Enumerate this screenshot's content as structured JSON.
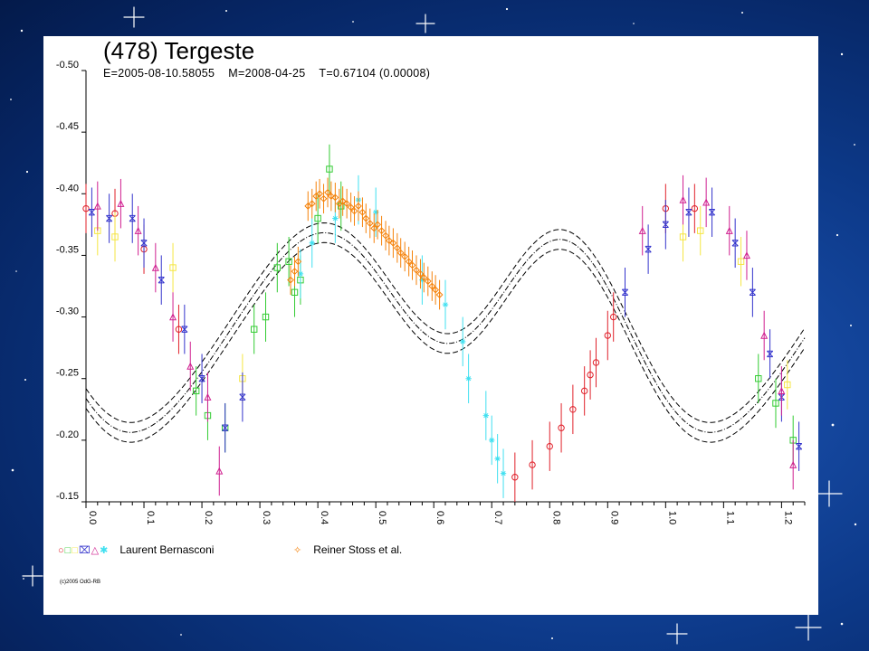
{
  "chart_data": {
    "type": "scatter",
    "title": "(478) Tergeste",
    "subtitle": "E=2005-08-10.58055    M=2008-04-25    T=0.67104 (0.00008)",
    "xlabel": "",
    "ylabel": "",
    "xlim": [
      0.0,
      1.24
    ],
    "ylim": [
      -0.5,
      -0.15
    ],
    "y_inverted": true,
    "x_ticks": [
      "0.0",
      "0.1",
      "0.2",
      "0.3",
      "0.4",
      "0.5",
      "0.6",
      "0.7",
      "0.8",
      "0.9",
      "1.0",
      "1.1",
      "1.2"
    ],
    "y_ticks": [
      "-0.50",
      "-0.45",
      "-0.40",
      "-0.35",
      "-0.30",
      "-0.25",
      "-0.20",
      "-0.15"
    ],
    "grid": false,
    "legend_position": "bottom",
    "fit_curves": [
      "dashed",
      "dash-dot",
      "dashed"
    ],
    "series": [
      {
        "name": "Laurent Bernasconi",
        "color": "#e0202a",
        "marker": "circle",
        "points": [
          [
            0.0,
            -0.388
          ],
          [
            0.05,
            -0.384
          ],
          [
            0.1,
            -0.355
          ],
          [
            0.16,
            -0.29
          ],
          [
            0.74,
            -0.17
          ],
          [
            0.77,
            -0.18
          ],
          [
            0.8,
            -0.195
          ],
          [
            0.82,
            -0.21
          ],
          [
            0.84,
            -0.225
          ],
          [
            0.86,
            -0.24
          ],
          [
            0.87,
            -0.253
          ],
          [
            0.88,
            -0.263
          ],
          [
            0.9,
            -0.285
          ],
          [
            0.91,
            -0.3
          ],
          [
            1.0,
            -0.388
          ],
          [
            1.05,
            -0.388
          ]
        ]
      },
      {
        "name": "Laurent Bernasconi",
        "color": "#33cc33",
        "marker": "square",
        "points": [
          [
            0.19,
            -0.24
          ],
          [
            0.21,
            -0.22
          ],
          [
            0.24,
            -0.21
          ],
          [
            0.29,
            -0.29
          ],
          [
            0.31,
            -0.3
          ],
          [
            0.33,
            -0.34
          ],
          [
            0.35,
            -0.345
          ],
          [
            0.36,
            -0.32
          ],
          [
            0.37,
            -0.33
          ],
          [
            0.4,
            -0.38
          ],
          [
            0.42,
            -0.42
          ],
          [
            0.44,
            -0.39
          ],
          [
            1.16,
            -0.25
          ],
          [
            1.19,
            -0.23
          ],
          [
            1.22,
            -0.2
          ]
        ]
      },
      {
        "name": "Laurent Bernasconi",
        "color": "#f5e642",
        "marker": "square",
        "points": [
          [
            0.02,
            -0.37
          ],
          [
            0.05,
            -0.365
          ],
          [
            0.15,
            -0.34
          ],
          [
            0.27,
            -0.25
          ],
          [
            1.03,
            -0.365
          ],
          [
            1.06,
            -0.37
          ],
          [
            1.13,
            -0.345
          ],
          [
            1.21,
            -0.245
          ]
        ]
      },
      {
        "name": "Laurent Bernasconi",
        "color": "#3333cc",
        "marker": "x-box",
        "points": [
          [
            0.01,
            -0.385
          ],
          [
            0.04,
            -0.38
          ],
          [
            0.08,
            -0.38
          ],
          [
            0.1,
            -0.36
          ],
          [
            0.13,
            -0.33
          ],
          [
            0.17,
            -0.29
          ],
          [
            0.2,
            -0.25
          ],
          [
            0.24,
            -0.21
          ],
          [
            0.27,
            -0.235
          ],
          [
            0.93,
            -0.32
          ],
          [
            0.97,
            -0.355
          ],
          [
            1.0,
            -0.375
          ],
          [
            1.04,
            -0.385
          ],
          [
            1.08,
            -0.385
          ],
          [
            1.12,
            -0.36
          ],
          [
            1.15,
            -0.32
          ],
          [
            1.18,
            -0.27
          ],
          [
            1.2,
            -0.235
          ],
          [
            1.23,
            -0.195
          ]
        ]
      },
      {
        "name": "Laurent Bernasconi",
        "color": "#d02090",
        "marker": "triangle",
        "points": [
          [
            0.02,
            -0.39
          ],
          [
            0.06,
            -0.392
          ],
          [
            0.09,
            -0.37
          ],
          [
            0.12,
            -0.34
          ],
          [
            0.15,
            -0.3
          ],
          [
            0.18,
            -0.26
          ],
          [
            0.21,
            -0.235
          ],
          [
            0.23,
            -0.175
          ],
          [
            0.96,
            -0.37
          ],
          [
            1.03,
            -0.395
          ],
          [
            1.07,
            -0.393
          ],
          [
            1.11,
            -0.37
          ],
          [
            1.14,
            -0.35
          ],
          [
            1.17,
            -0.285
          ],
          [
            1.2,
            -0.24
          ],
          [
            1.22,
            -0.18
          ]
        ]
      },
      {
        "name": "Laurent Bernasconi",
        "color": "#40e0f0",
        "marker": "star",
        "points": [
          [
            0.37,
            -0.335
          ],
          [
            0.39,
            -0.36
          ],
          [
            0.43,
            -0.38
          ],
          [
            0.47,
            -0.395
          ],
          [
            0.5,
            -0.385
          ],
          [
            0.58,
            -0.33
          ],
          [
            0.62,
            -0.31
          ],
          [
            0.65,
            -0.28
          ],
          [
            0.66,
            -0.25
          ],
          [
            0.69,
            -0.22
          ],
          [
            0.7,
            -0.2
          ],
          [
            0.71,
            -0.185
          ],
          [
            0.72,
            -0.173
          ]
        ]
      },
      {
        "name": "Reiner Stoss et al.",
        "color": "#f5820a",
        "marker": "diamond-cross",
        "points": [
          [
            0.353,
            -0.33
          ],
          [
            0.36,
            -0.337
          ],
          [
            0.366,
            -0.345
          ],
          [
            0.383,
            -0.39
          ],
          [
            0.39,
            -0.392
          ],
          [
            0.397,
            -0.398
          ],
          [
            0.403,
            -0.4
          ],
          [
            0.41,
            -0.396
          ],
          [
            0.417,
            -0.401
          ],
          [
            0.423,
            -0.398
          ],
          [
            0.43,
            -0.397
          ],
          [
            0.437,
            -0.392
          ],
          [
            0.443,
            -0.394
          ],
          [
            0.45,
            -0.392
          ],
          [
            0.457,
            -0.389
          ],
          [
            0.463,
            -0.386
          ],
          [
            0.47,
            -0.39
          ],
          [
            0.477,
            -0.385
          ],
          [
            0.483,
            -0.38
          ],
          [
            0.49,
            -0.376
          ],
          [
            0.497,
            -0.372
          ],
          [
            0.503,
            -0.375
          ],
          [
            0.51,
            -0.37
          ],
          [
            0.517,
            -0.366
          ],
          [
            0.523,
            -0.362
          ],
          [
            0.53,
            -0.36
          ],
          [
            0.537,
            -0.356
          ],
          [
            0.543,
            -0.352
          ],
          [
            0.55,
            -0.349
          ],
          [
            0.557,
            -0.345
          ],
          [
            0.563,
            -0.342
          ],
          [
            0.57,
            -0.338
          ],
          [
            0.577,
            -0.335
          ],
          [
            0.583,
            -0.332
          ],
          [
            0.59,
            -0.329
          ],
          [
            0.597,
            -0.325
          ],
          [
            0.603,
            -0.322
          ],
          [
            0.61,
            -0.318
          ]
        ]
      }
    ]
  },
  "legend": {
    "left_label": "Laurent Bernasconi",
    "right_label": "Reiner Stoss et al.",
    "left_symbols": [
      {
        "glyph": "○",
        "color": "#e0202a"
      },
      {
        "glyph": "□",
        "color": "#33cc33"
      },
      {
        "glyph": "□",
        "color": "#f5e642"
      },
      {
        "glyph": "⌧",
        "color": "#3333cc"
      },
      {
        "glyph": "△",
        "color": "#d02090"
      },
      {
        "glyph": "✱",
        "color": "#40e0f0"
      }
    ],
    "right_symbol": {
      "glyph": "✧",
      "color": "#f5820a"
    }
  },
  "copyright": "(c)2005 OdG-RB",
  "colors": {
    "background": "#0d3a8a",
    "panel": "#ffffff"
  }
}
